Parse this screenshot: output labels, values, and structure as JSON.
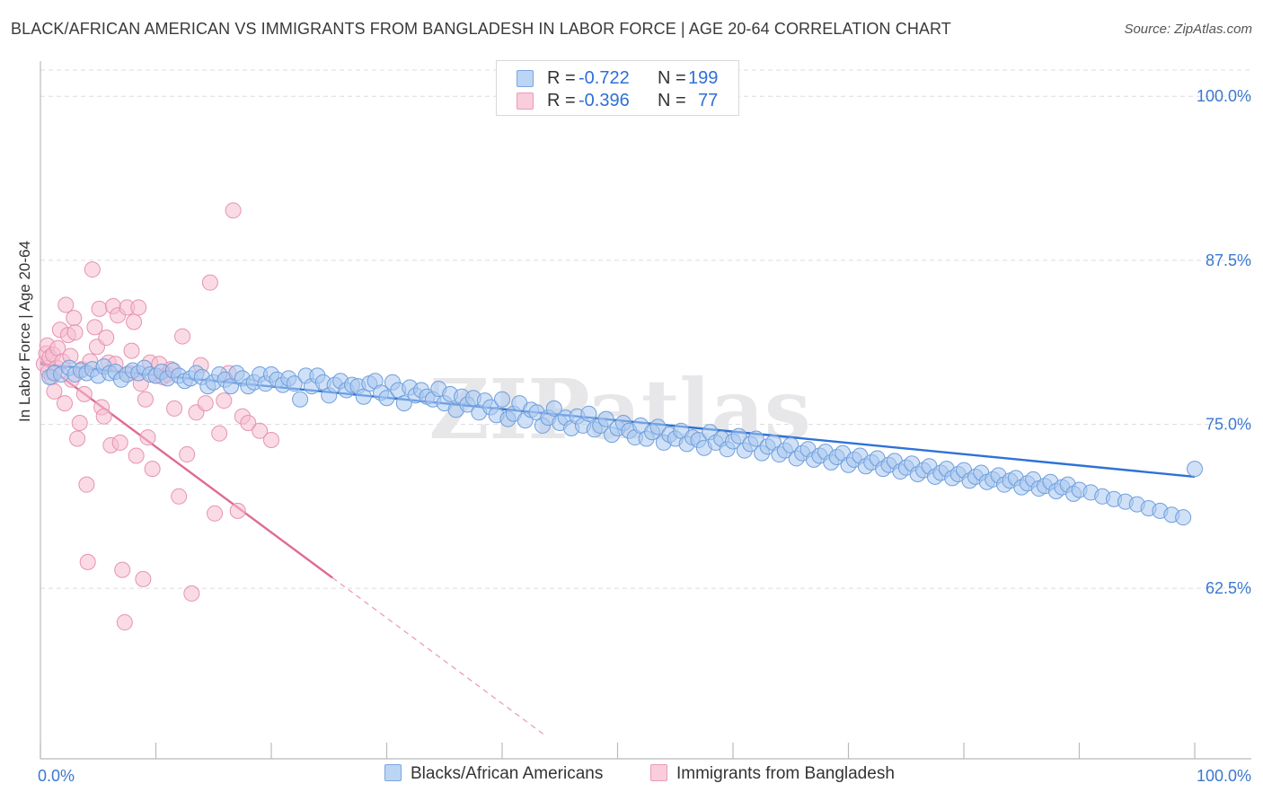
{
  "title": "BLACK/AFRICAN AMERICAN VS IMMIGRANTS FROM BANGLADESH IN LABOR FORCE | AGE 20-64 CORRELATION CHART",
  "source": "Source: ZipAtlas.com",
  "watermark": "ZIPatlas",
  "legend": {
    "r_label": "R =",
    "n_label": "N =",
    "rows": [
      {
        "r": "-0.722",
        "n": "199"
      },
      {
        "r": "-0.396",
        "n": "77"
      }
    ]
  },
  "colors": {
    "blue_fill": "#a9c8f0",
    "blue_stroke": "#6f9fdc",
    "blue_line": "#2e72d6",
    "pink_fill": "#f6bdd0",
    "pink_stroke": "#e792b0",
    "pink_line": "#e06a96",
    "tick_label": "#3b78d0",
    "grid": "#dddddd"
  },
  "chart_data": {
    "type": "scatter",
    "title": "BLACK/AFRICAN AMERICAN VS IMMIGRANTS FROM BANGLADESH IN LABOR FORCE | AGE 20-64 CORRELATION CHART",
    "xlabel": "",
    "ylabel": "In Labor Force | Age 20-64",
    "xlim": [
      0,
      100
    ],
    "ylim": [
      49.5,
      102
    ],
    "x_tick_labels": [
      "0.0%",
      "100.0%"
    ],
    "y_ticks": [
      62.5,
      75.0,
      87.5,
      100.0
    ],
    "y_tick_labels": [
      "62.5%",
      "75.0%",
      "87.5%",
      "100.0%"
    ],
    "grid": true,
    "legend_position": "top-center",
    "series": [
      {
        "name": "Blacks/African Americans",
        "r": -0.722,
        "n": 199,
        "trend": {
          "x": [
            0,
            100
          ],
          "y": [
            79.6,
            71.0
          ]
        },
        "points": [
          [
            0.8,
            78.6
          ],
          [
            1.2,
            78.9
          ],
          [
            1.8,
            78.8
          ],
          [
            2.5,
            79.3
          ],
          [
            3.0,
            78.8
          ],
          [
            3.5,
            79.1
          ],
          [
            4.0,
            78.9
          ],
          [
            4.5,
            79.2
          ],
          [
            5.0,
            78.7
          ],
          [
            5.5,
            79.4
          ],
          [
            6.0,
            78.9
          ],
          [
            6.5,
            79.0
          ],
          [
            7.0,
            78.4
          ],
          [
            7.5,
            78.8
          ],
          [
            8.0,
            79.1
          ],
          [
            8.5,
            78.9
          ],
          [
            9.0,
            79.3
          ],
          [
            9.5,
            78.8
          ],
          [
            10.0,
            78.7
          ],
          [
            10.5,
            79.0
          ],
          [
            11.0,
            78.5
          ],
          [
            11.5,
            79.1
          ],
          [
            12.0,
            78.7
          ],
          [
            12.5,
            78.3
          ],
          [
            13.0,
            78.5
          ],
          [
            13.5,
            78.9
          ],
          [
            14.0,
            78.6
          ],
          [
            14.5,
            77.9
          ],
          [
            15.0,
            78.2
          ],
          [
            15.5,
            78.8
          ],
          [
            16.0,
            78.4
          ],
          [
            16.5,
            77.9
          ],
          [
            17.0,
            78.9
          ],
          [
            17.5,
            78.5
          ],
          [
            18.0,
            77.9
          ],
          [
            18.5,
            78.2
          ],
          [
            19.0,
            78.8
          ],
          [
            19.5,
            78.1
          ],
          [
            20.0,
            78.8
          ],
          [
            20.5,
            78.4
          ],
          [
            21.0,
            78.0
          ],
          [
            21.5,
            78.5
          ],
          [
            22.0,
            78.1
          ],
          [
            22.5,
            76.9
          ],
          [
            23.0,
            78.7
          ],
          [
            23.5,
            77.9
          ],
          [
            24.0,
            78.7
          ],
          [
            24.5,
            78.2
          ],
          [
            25.0,
            77.2
          ],
          [
            25.5,
            78.0
          ],
          [
            26.0,
            78.3
          ],
          [
            26.5,
            77.6
          ],
          [
            27.0,
            78.0
          ],
          [
            27.5,
            77.9
          ],
          [
            28.0,
            77.1
          ],
          [
            28.5,
            78.1
          ],
          [
            29.0,
            78.3
          ],
          [
            29.5,
            77.4
          ],
          [
            30.0,
            77.0
          ],
          [
            30.5,
            78.2
          ],
          [
            31.0,
            77.6
          ],
          [
            31.5,
            76.6
          ],
          [
            32.0,
            77.8
          ],
          [
            32.5,
            77.2
          ],
          [
            33.0,
            77.6
          ],
          [
            33.5,
            77.1
          ],
          [
            34.0,
            76.9
          ],
          [
            34.5,
            77.7
          ],
          [
            35.0,
            76.6
          ],
          [
            35.5,
            77.3
          ],
          [
            36.0,
            76.1
          ],
          [
            36.5,
            77.1
          ],
          [
            37.0,
            76.5
          ],
          [
            37.5,
            77.0
          ],
          [
            38.0,
            75.9
          ],
          [
            38.5,
            76.8
          ],
          [
            39.0,
            76.3
          ],
          [
            39.5,
            75.7
          ],
          [
            40.0,
            76.9
          ],
          [
            40.5,
            75.4
          ],
          [
            41.0,
            75.8
          ],
          [
            41.5,
            76.6
          ],
          [
            42.0,
            75.3
          ],
          [
            42.5,
            76.1
          ],
          [
            43.0,
            75.9
          ],
          [
            43.5,
            74.9
          ],
          [
            44.0,
            75.5
          ],
          [
            44.5,
            76.2
          ],
          [
            45.0,
            75.1
          ],
          [
            45.5,
            75.5
          ],
          [
            46.0,
            74.7
          ],
          [
            46.5,
            75.6
          ],
          [
            47.0,
            74.9
          ],
          [
            47.5,
            75.8
          ],
          [
            48.0,
            74.6
          ],
          [
            48.5,
            74.9
          ],
          [
            49.0,
            75.4
          ],
          [
            49.5,
            74.2
          ],
          [
            50.0,
            74.7
          ],
          [
            50.5,
            75.1
          ],
          [
            51.0,
            74.5
          ],
          [
            51.5,
            74.0
          ],
          [
            52.0,
            74.9
          ],
          [
            52.5,
            73.9
          ],
          [
            53.0,
            74.4
          ],
          [
            53.5,
            74.8
          ],
          [
            54.0,
            73.6
          ],
          [
            54.5,
            74.2
          ],
          [
            55.0,
            73.9
          ],
          [
            55.5,
            74.5
          ],
          [
            56.0,
            73.5
          ],
          [
            56.5,
            74.0
          ],
          [
            57.0,
            73.8
          ],
          [
            57.5,
            73.2
          ],
          [
            58.0,
            74.4
          ],
          [
            58.5,
            73.6
          ],
          [
            59.0,
            73.9
          ],
          [
            59.5,
            73.1
          ],
          [
            60.0,
            73.7
          ],
          [
            60.5,
            74.1
          ],
          [
            61.0,
            73.0
          ],
          [
            61.5,
            73.5
          ],
          [
            62.0,
            73.9
          ],
          [
            62.5,
            72.8
          ],
          [
            63.0,
            73.3
          ],
          [
            63.5,
            73.6
          ],
          [
            64.0,
            72.7
          ],
          [
            64.5,
            73.0
          ],
          [
            65.0,
            73.4
          ],
          [
            65.5,
            72.4
          ],
          [
            66.0,
            72.8
          ],
          [
            66.5,
            73.1
          ],
          [
            67.0,
            72.3
          ],
          [
            67.5,
            72.6
          ],
          [
            68.0,
            72.9
          ],
          [
            68.5,
            72.1
          ],
          [
            69.0,
            72.5
          ],
          [
            69.5,
            72.8
          ],
          [
            70.0,
            71.9
          ],
          [
            70.5,
            72.3
          ],
          [
            71.0,
            72.6
          ],
          [
            71.5,
            71.8
          ],
          [
            72.0,
            72.1
          ],
          [
            72.5,
            72.4
          ],
          [
            73.0,
            71.6
          ],
          [
            73.5,
            71.9
          ],
          [
            74.0,
            72.2
          ],
          [
            74.5,
            71.4
          ],
          [
            75.0,
            71.7
          ],
          [
            75.5,
            72.0
          ],
          [
            76.0,
            71.2
          ],
          [
            76.5,
            71.5
          ],
          [
            77.0,
            71.8
          ],
          [
            77.5,
            71.0
          ],
          [
            78.0,
            71.3
          ],
          [
            78.5,
            71.6
          ],
          [
            79.0,
            70.9
          ],
          [
            79.5,
            71.2
          ],
          [
            80.0,
            71.5
          ],
          [
            80.5,
            70.7
          ],
          [
            81.0,
            71.0
          ],
          [
            81.5,
            71.3
          ],
          [
            82.0,
            70.6
          ],
          [
            82.5,
            70.8
          ],
          [
            83.0,
            71.1
          ],
          [
            83.5,
            70.4
          ],
          [
            84.0,
            70.7
          ],
          [
            84.5,
            70.9
          ],
          [
            85.0,
            70.2
          ],
          [
            85.5,
            70.5
          ],
          [
            86.0,
            70.8
          ],
          [
            86.5,
            70.1
          ],
          [
            87.0,
            70.3
          ],
          [
            87.5,
            70.6
          ],
          [
            88.0,
            69.9
          ],
          [
            88.5,
            70.2
          ],
          [
            89.0,
            70.4
          ],
          [
            89.5,
            69.7
          ],
          [
            90.0,
            70.0
          ],
          [
            91.0,
            69.8
          ],
          [
            92.0,
            69.5
          ],
          [
            93.0,
            69.3
          ],
          [
            94.0,
            69.1
          ],
          [
            95.0,
            68.9
          ],
          [
            96.0,
            68.6
          ],
          [
            97.0,
            68.4
          ],
          [
            98.0,
            68.1
          ],
          [
            99.0,
            67.9
          ],
          [
            100.0,
            71.6
          ]
        ]
      },
      {
        "name": "Immigrants from Bangladesh",
        "r": -0.396,
        "n": 77,
        "trend": {
          "x": [
            0,
            25.3
          ],
          "y": [
            79.8,
            63.3
          ]
        },
        "trend_dashed": {
          "x": [
            25.3,
            43.7
          ],
          "y": [
            63.3,
            51.3
          ]
        },
        "points": [
          [
            0.3,
            79.6
          ],
          [
            0.5,
            80.4
          ],
          [
            0.6,
            81.0
          ],
          [
            0.7,
            79.0
          ],
          [
            0.8,
            80.1
          ],
          [
            1.0,
            78.6
          ],
          [
            1.1,
            80.3
          ],
          [
            1.2,
            77.5
          ],
          [
            1.4,
            79.3
          ],
          [
            1.5,
            80.8
          ],
          [
            1.7,
            82.2
          ],
          [
            1.9,
            79.8
          ],
          [
            2.1,
            76.6
          ],
          [
            2.2,
            84.1
          ],
          [
            2.4,
            81.8
          ],
          [
            2.6,
            80.2
          ],
          [
            2.7,
            78.4
          ],
          [
            2.9,
            83.1
          ],
          [
            3.0,
            82.0
          ],
          [
            3.2,
            73.9
          ],
          [
            3.4,
            75.1
          ],
          [
            3.6,
            79.2
          ],
          [
            3.8,
            77.3
          ],
          [
            4.0,
            70.4
          ],
          [
            4.1,
            64.5
          ],
          [
            4.3,
            79.8
          ],
          [
            4.5,
            86.8
          ],
          [
            4.7,
            82.4
          ],
          [
            4.9,
            80.9
          ],
          [
            5.1,
            83.8
          ],
          [
            5.3,
            76.3
          ],
          [
            5.5,
            75.6
          ],
          [
            5.7,
            81.6
          ],
          [
            5.9,
            79.7
          ],
          [
            6.1,
            73.4
          ],
          [
            6.3,
            84.0
          ],
          [
            6.5,
            79.6
          ],
          [
            6.7,
            83.3
          ],
          [
            6.9,
            73.6
          ],
          [
            7.1,
            63.9
          ],
          [
            7.3,
            59.9
          ],
          [
            7.5,
            83.9
          ],
          [
            7.7,
            78.9
          ],
          [
            7.9,
            80.6
          ],
          [
            8.1,
            82.8
          ],
          [
            8.3,
            72.6
          ],
          [
            8.5,
            83.9
          ],
          [
            8.7,
            78.1
          ],
          [
            8.9,
            63.2
          ],
          [
            9.1,
            76.9
          ],
          [
            9.3,
            74.0
          ],
          [
            9.5,
            79.7
          ],
          [
            9.7,
            71.6
          ],
          [
            10.0,
            78.7
          ],
          [
            10.3,
            79.6
          ],
          [
            10.6,
            78.6
          ],
          [
            11.0,
            78.8
          ],
          [
            11.3,
            79.2
          ],
          [
            11.6,
            76.2
          ],
          [
            12.0,
            69.5
          ],
          [
            12.3,
            81.7
          ],
          [
            12.7,
            72.7
          ],
          [
            13.1,
            62.1
          ],
          [
            13.5,
            75.9
          ],
          [
            13.9,
            79.5
          ],
          [
            14.3,
            76.6
          ],
          [
            14.7,
            85.8
          ],
          [
            15.1,
            68.2
          ],
          [
            15.5,
            74.3
          ],
          [
            15.9,
            76.8
          ],
          [
            16.3,
            78.9
          ],
          [
            16.7,
            91.3
          ],
          [
            17.1,
            68.4
          ],
          [
            17.5,
            75.6
          ],
          [
            18.0,
            75.1
          ],
          [
            19.0,
            74.5
          ],
          [
            20.0,
            73.8
          ]
        ]
      }
    ]
  },
  "axis": {
    "y_label": "In Labor Force | Age 20-64",
    "x_min_label": "0.0%",
    "x_max_label": "100.0%"
  },
  "bottom_legend": [
    "Blacks/African Americans",
    "Immigrants from Bangladesh"
  ]
}
